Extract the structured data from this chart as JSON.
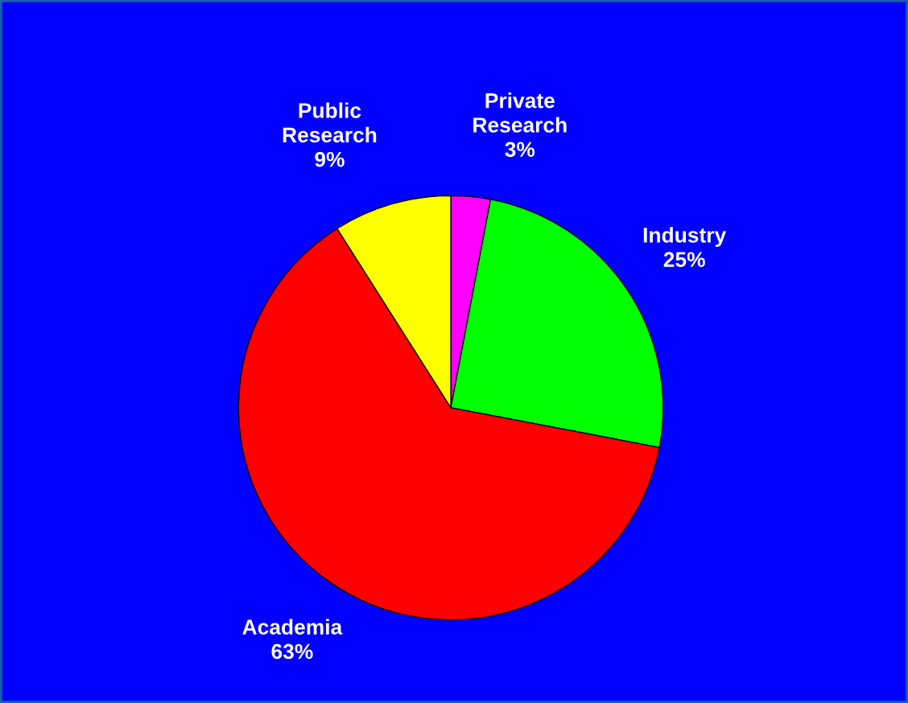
{
  "chart_data": {
    "type": "pie",
    "categories": [
      "Private Research",
      "Industry",
      "Academia",
      "Public Research"
    ],
    "values": [
      3,
      25,
      63,
      9
    ],
    "value_labels": [
      "3%",
      "25%",
      "63%",
      "9%"
    ],
    "colors": [
      "#ff00ff",
      "#00ff00",
      "#ff0000",
      "#ffff00"
    ]
  }
}
